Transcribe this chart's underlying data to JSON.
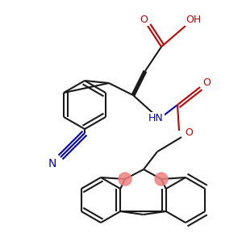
{
  "bg_color": "#ffffff",
  "bond_color": "#1a1a1a",
  "red_color": "#cc0000",
  "blue_color": "#0000cc",
  "pink_color": "#f08080",
  "line_width": 1.5,
  "figsize": [
    3.0,
    3.0
  ],
  "dpi": 100,
  "xlim": [
    0,
    300
  ],
  "ylim": [
    0,
    300
  ]
}
